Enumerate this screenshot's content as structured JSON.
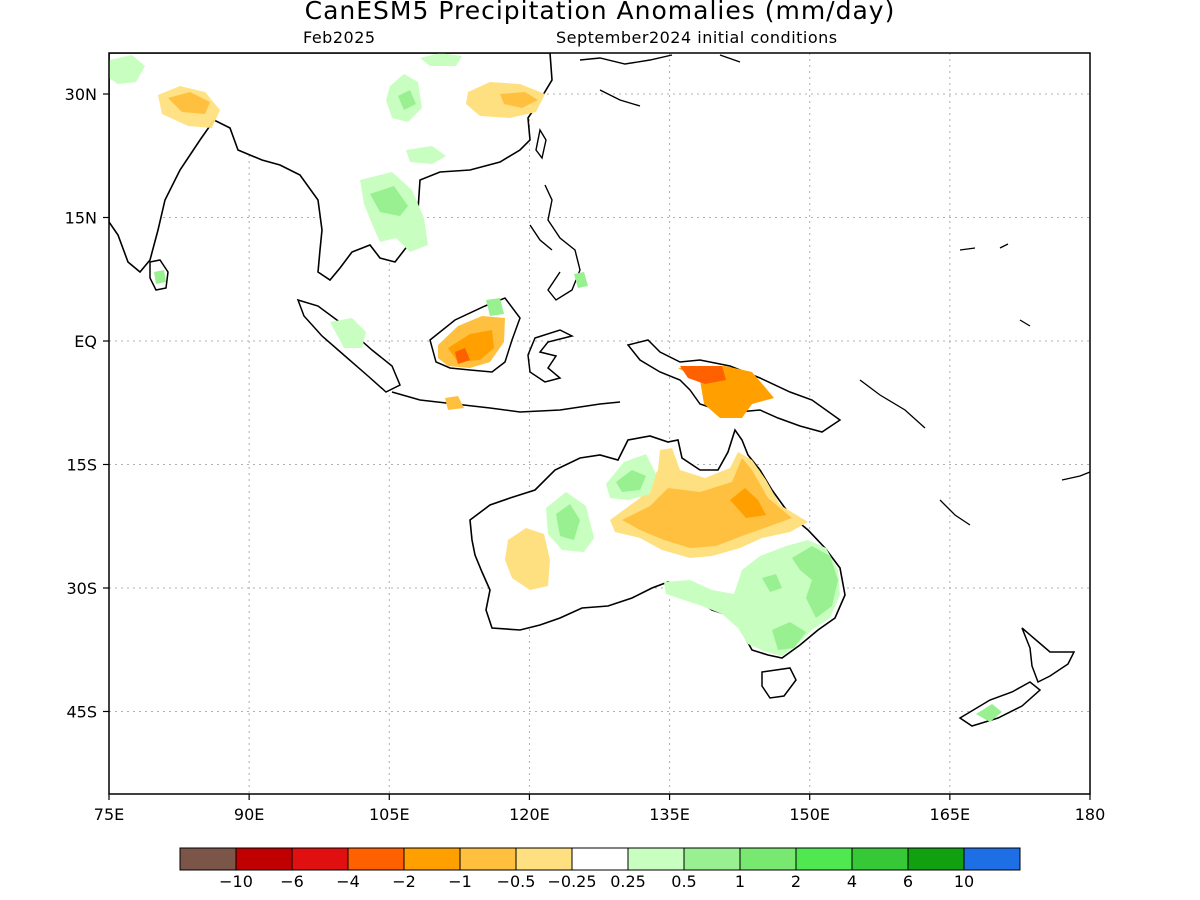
{
  "title": "CanESM5 Precipitation Anomalies (mm/day)",
  "subtitle_left": "Feb2025",
  "subtitle_right": "September2024 initial conditions",
  "map": {
    "lon_range": [
      75,
      180
    ],
    "lat_range": [
      -55,
      35
    ],
    "lon_ticks": [
      {
        "value": 75,
        "label": "75E"
      },
      {
        "value": 90,
        "label": "90E"
      },
      {
        "value": 105,
        "label": "105E"
      },
      {
        "value": 120,
        "label": "120E"
      },
      {
        "value": 135,
        "label": "135E"
      },
      {
        "value": 150,
        "label": "150E"
      },
      {
        "value": 165,
        "label": "165E"
      },
      {
        "value": 180,
        "label": "180"
      }
    ],
    "lat_ticks": [
      {
        "value": 30,
        "label": "30N"
      },
      {
        "value": 15,
        "label": "15N"
      },
      {
        "value": 0,
        "label": "EQ"
      },
      {
        "value": -15,
        "label": "15S"
      },
      {
        "value": -30,
        "label": "30S"
      },
      {
        "value": -45,
        "label": "45S"
      }
    ],
    "grid": true
  },
  "colorbar": {
    "colors": [
      "#7a5548",
      "#c00000",
      "#e01010",
      "#ff6000",
      "#ffa000",
      "#ffc040",
      "#ffe080",
      "#ffffff",
      "#c8ffc0",
      "#98f090",
      "#78e870",
      "#50e850",
      "#36c836",
      "#10a010",
      "#1e6ee6"
    ],
    "labels": [
      "−10",
      "−6",
      "−4",
      "−2",
      "−1",
      "−0.5",
      "−0.25",
      "0.25",
      "0.5",
      "1",
      "2",
      "4",
      "6",
      "10"
    ]
  }
}
